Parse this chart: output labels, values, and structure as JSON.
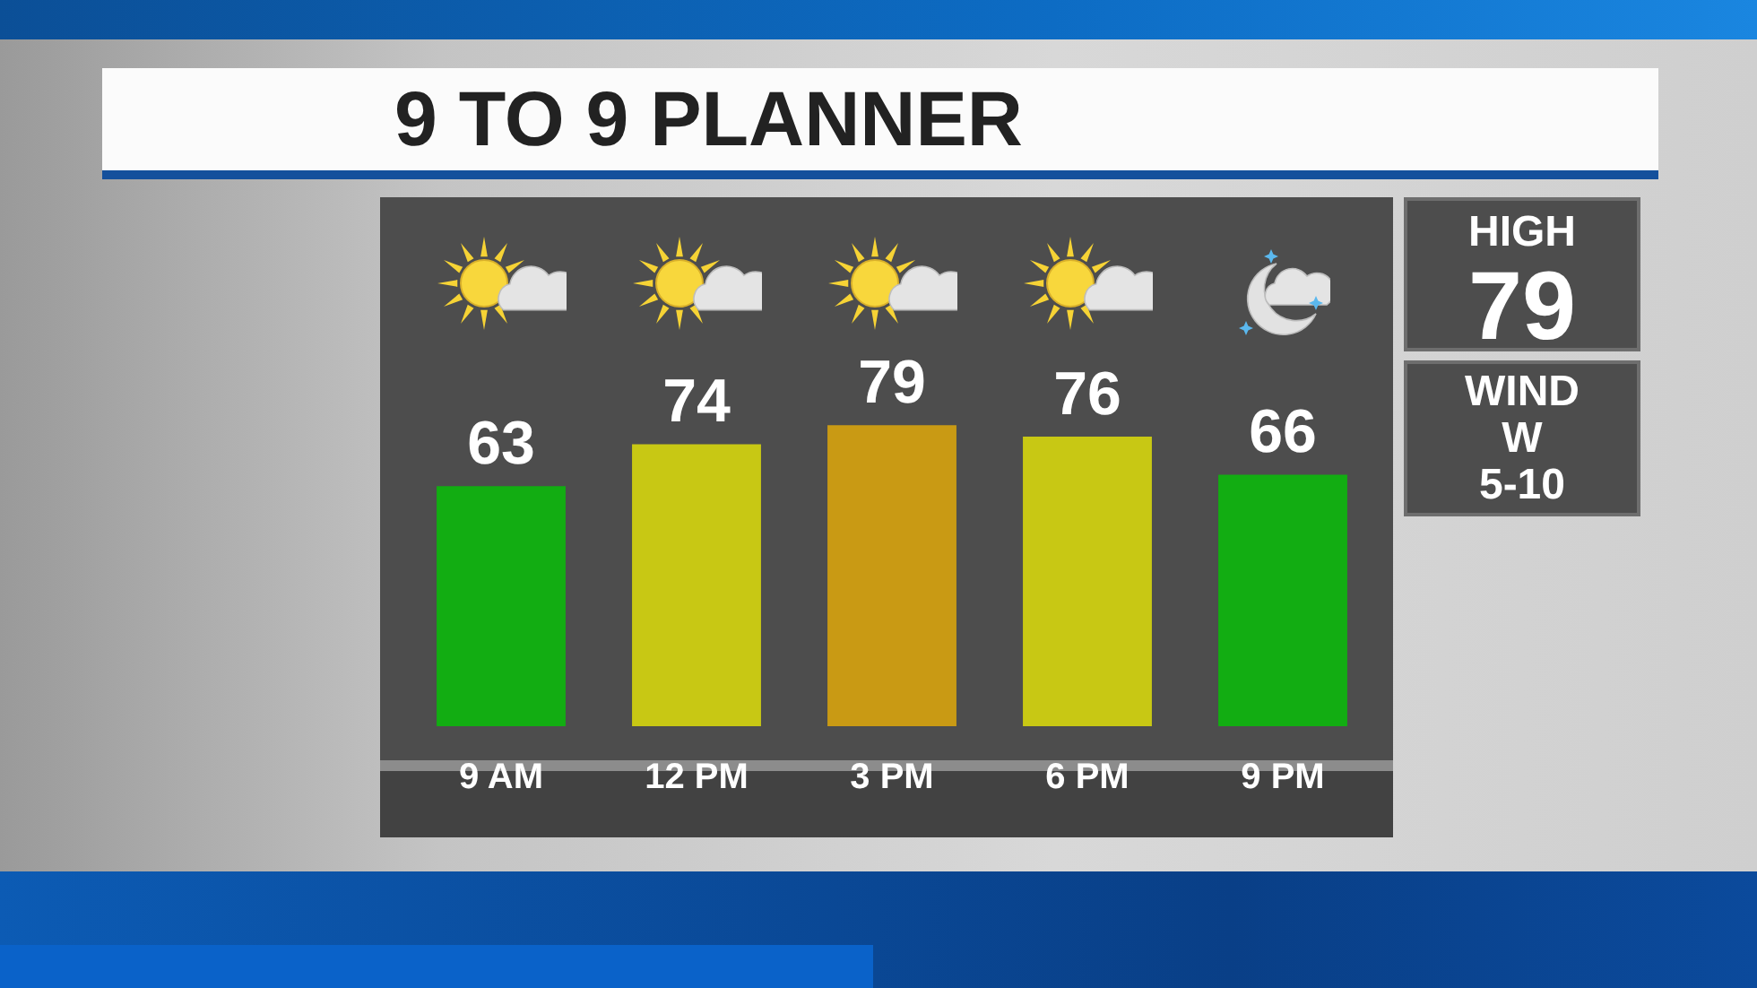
{
  "chart_data": {
    "type": "bar",
    "title": "9 TO 9 PLANNER",
    "categories": [
      "9 AM",
      "12 PM",
      "3 PM",
      "6 PM",
      "9 PM"
    ],
    "values": [
      63,
      74,
      79,
      76,
      66
    ],
    "colors": [
      "#12ad12",
      "#c8c814",
      "#c99a14",
      "#c8c814",
      "#12ad12"
    ],
    "data_labels": true,
    "tick_labels": "x",
    "annotations": [
      "HIGH",
      "79",
      "WIND",
      "W",
      "5-10"
    ]
  }
}
